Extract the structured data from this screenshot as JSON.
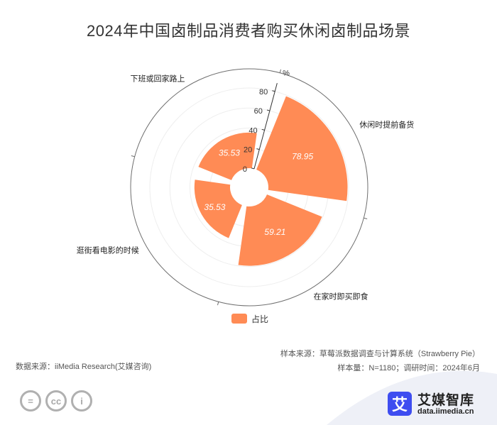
{
  "title": "2024年中国卤制品消费者购买休闲卤制品场景",
  "chart_data": {
    "type": "polar-bar",
    "categories": [
      "休闲时提前备货",
      "在家时即买即食",
      "逛街看电影的时候",
      "下班或回家路上"
    ],
    "series": [
      {
        "name": "占比",
        "values": [
          78.95,
          59.21,
          35.53,
          35.53
        ],
        "color": "#ff8b55"
      }
    ],
    "radial_axis": {
      "unit": "%",
      "ticks": [
        0,
        20,
        40,
        60,
        80
      ],
      "range": [
        0,
        80
      ]
    },
    "legend_position": "bottom-center",
    "grid": true
  },
  "footer": {
    "data_source": "数据来源：iiMedia Research(艾媒咨询)",
    "sample_source": "样本来源：草莓派数据调查与计算系统（Strawberry Pie）",
    "sample_info": "样本量：N=1180；调研时间：2024年6月"
  },
  "brand": {
    "logo_char": "艾",
    "name": "艾媒智库",
    "url": "data.iimedia.cn"
  },
  "cc_icons": [
    "=",
    "cc",
    "i"
  ]
}
